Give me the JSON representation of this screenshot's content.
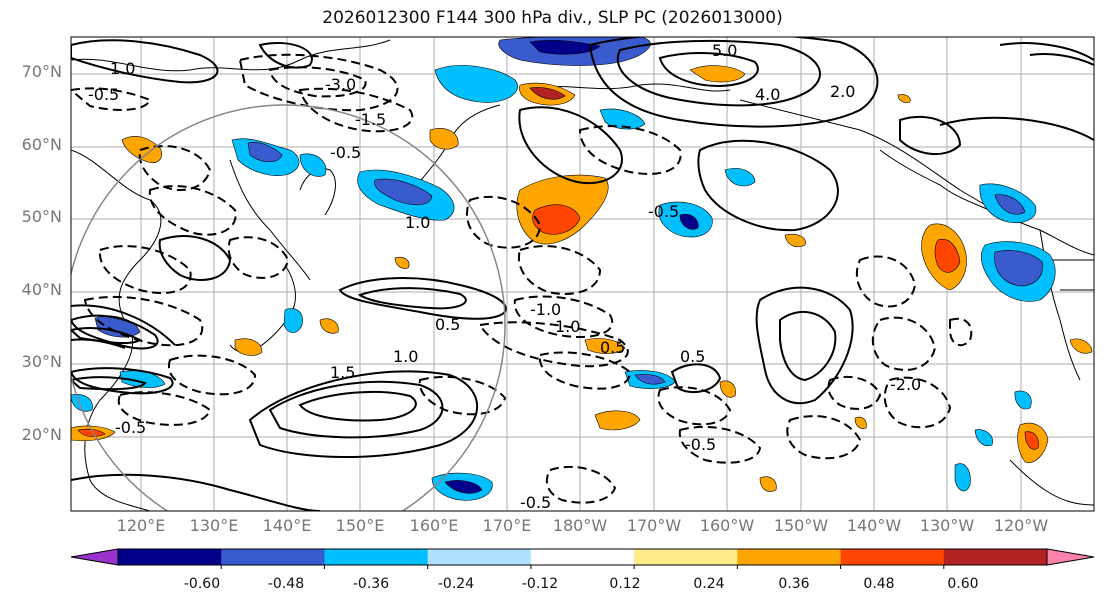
{
  "title": "2026012300 F144 300 hPa div., SLP PC (2026013000)",
  "lat_labels": [
    "70°N",
    "60°N",
    "50°N",
    "40°N",
    "30°N",
    "20°N"
  ],
  "lon_labels": [
    "120°E",
    "130°E",
    "140°E",
    "150°E",
    "160°E",
    "170°E",
    "180°W",
    "170°W",
    "160°W",
    "150°W",
    "140°W",
    "130°W",
    "120°W"
  ],
  "colorbar": {
    "colors": [
      "#9932cc",
      "#00008b",
      "#3a5bcd",
      "#00bfff",
      "#b0e2ff",
      "#ffffff",
      "#ffec8b",
      "#ffa500",
      "#ff4500",
      "#b22222",
      "#ff82ab"
    ],
    "tick_labels": [
      "-0.60",
      "-0.48",
      "-0.36",
      "-0.24",
      "-0.12",
      "0.12",
      "0.24",
      "0.36",
      "0.48",
      "0.60"
    ]
  },
  "contour_labels": {
    "pos_5": "5.0",
    "pos_4": "4.0",
    "pos_2": "2.0",
    "pos_1": "1.0",
    "pos_1_5": "1.5",
    "pos_0_5": "0.5",
    "neg_0_5": "-0.5",
    "neg_1": "-1.0",
    "neg_1_5": "-1.5",
    "neg_2": "-2.0",
    "neg_3": "-3.0"
  }
}
